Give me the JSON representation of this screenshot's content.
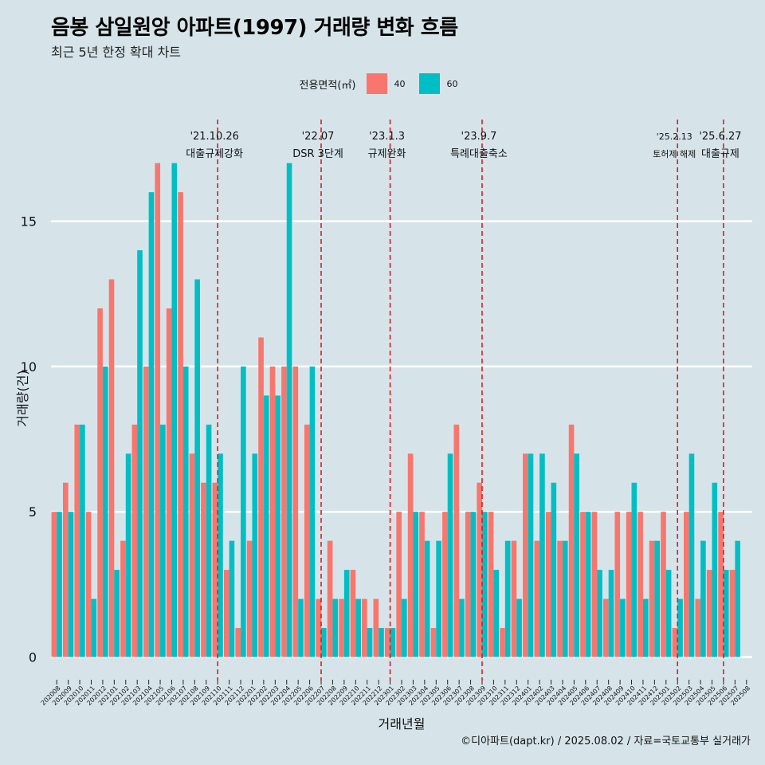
{
  "title": "음봉 삼일원앙 아파트(1997) 거래량 변화 흐름",
  "subtitle": "최근 5년 한정 확대 차트",
  "caption": "©디아파트(dapt.kr) / 2025.08.02 / 자료=국토교통부 실거래가",
  "legend": {
    "title": "전용면적(㎡)",
    "items": [
      {
        "label": "40",
        "color": "#f8766d"
      },
      {
        "label": "60",
        "color": "#00bfc4"
      }
    ]
  },
  "chart_data": {
    "type": "bar",
    "xlabel": "거래년월",
    "ylabel": "거래량(건)",
    "ylim": [
      -0.7,
      18.5
    ],
    "yticks": [
      0,
      5,
      10,
      15
    ],
    "categories": [
      "202008",
      "202009",
      "202010",
      "202011",
      "202012",
      "202101",
      "202102",
      "202103",
      "202104",
      "202105",
      "202106",
      "202107",
      "202108",
      "202109",
      "202110",
      "202111",
      "202112",
      "202201",
      "202202",
      "202203",
      "202204",
      "202205",
      "202206",
      "202207",
      "202208",
      "202209",
      "202210",
      "202211",
      "202212",
      "202301",
      "202302",
      "202303",
      "202304",
      "202305",
      "202306",
      "202307",
      "202308",
      "202309",
      "202310",
      "202311",
      "202312",
      "202401",
      "202402",
      "202403",
      "202404",
      "202405",
      "202406",
      "202407",
      "202408",
      "202409",
      "202410",
      "202411",
      "202412",
      "202501",
      "202502",
      "202503",
      "202504",
      "202505",
      "202506",
      "202507",
      "202508"
    ],
    "series": [
      {
        "name": "40",
        "color": "#f8766d",
        "values": [
          5,
          6,
          8,
          5,
          12,
          13,
          4,
          8,
          10,
          17,
          12,
          16,
          7,
          6,
          6,
          3,
          1,
          4,
          11,
          10,
          10,
          10,
          8,
          2,
          4,
          2,
          3,
          2,
          2,
          1,
          5,
          7,
          5,
          1,
          5,
          8,
          5,
          6,
          5,
          1,
          4,
          7,
          4,
          5,
          4,
          8,
          5,
          5,
          2,
          5,
          5,
          5,
          4,
          5,
          1,
          5,
          2,
          3,
          5,
          3,
          null
        ]
      },
      {
        "name": "60",
        "color": "#00bfc4",
        "values": [
          5,
          5,
          8,
          2,
          10,
          3,
          7,
          14,
          16,
          8,
          17,
          10,
          13,
          8,
          7,
          4,
          10,
          7,
          9,
          9,
          17,
          2,
          10,
          1,
          2,
          3,
          2,
          1,
          1,
          1,
          2,
          5,
          4,
          4,
          7,
          2,
          5,
          5,
          3,
          4,
          2,
          7,
          7,
          6,
          4,
          7,
          5,
          3,
          3,
          2,
          6,
          2,
          4,
          3,
          2,
          7,
          4,
          6,
          3,
          4,
          null
        ]
      }
    ],
    "events": [
      {
        "x_index": 14.0,
        "date": "'21.10.26",
        "label": "대출규제강화"
      },
      {
        "x_index": 23.0,
        "date": "'22.07",
        "label": "DSR 3단계"
      },
      {
        "x_index": 29.0,
        "date": "'23.1.3",
        "label": "규제완화"
      },
      {
        "x_index": 37.0,
        "date": "'23.9.7",
        "label": "특례대출축소"
      },
      {
        "x_index": 54.0,
        "date": "'25.2.13",
        "label": "토허제 해제"
      },
      {
        "x_index": 58.0,
        "date": "'25.6.27",
        "label": "대출규제"
      }
    ]
  }
}
